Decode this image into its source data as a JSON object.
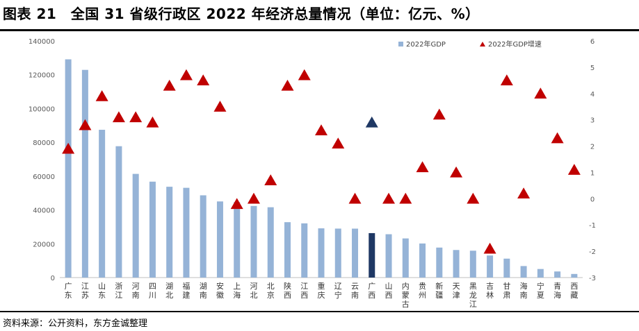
{
  "title": "图表 21　全国 31 省级行政区 2022 年经济总量情况（单位：亿元、%）",
  "source": "资料来源：公开资料，东方金诚整理",
  "colors": {
    "bar": "#95b3d7",
    "bar_highlight": "#1f3864",
    "marker": "#c00000",
    "marker_highlight": "#1f3864",
    "axis": "#bfbfbf"
  },
  "chart_data": {
    "type": "bar",
    "highlight_category": "广西",
    "categories": [
      "广东",
      "江苏",
      "山东",
      "浙江",
      "河南",
      "四川",
      "湖北",
      "福建",
      "湖南",
      "安徽",
      "上海",
      "河北",
      "北京",
      "陕西",
      "江西",
      "重庆",
      "辽宁",
      "云南",
      "广西",
      "山西",
      "内蒙古",
      "贵州",
      "新疆",
      "天津",
      "黑龙江",
      "吉林",
      "甘肃",
      "海南",
      "宁夏",
      "青海",
      "西藏"
    ],
    "series": [
      {
        "name": "2022年GDP",
        "type": "bar",
        "axis": "left",
        "values": [
          129118,
          122876,
          87435,
          77715,
          61345,
          56750,
          53735,
          53110,
          48670,
          45045,
          44653,
          42370,
          41611,
          32773,
          32075,
          29129,
          28975,
          28954,
          26301,
          25643,
          23159,
          20165,
          17741,
          16311,
          15901,
          13070,
          11201,
          6818,
          5070,
          3610,
          2133
        ]
      },
      {
        "name": "2022年GDP增速",
        "type": "scatter",
        "marker": "triangle",
        "axis": "right",
        "values": [
          1.9,
          2.8,
          3.9,
          3.1,
          3.1,
          2.9,
          4.3,
          4.7,
          4.5,
          3.5,
          -0.2,
          0.0,
          0.7,
          4.3,
          4.7,
          2.6,
          2.1,
          0.0,
          2.9,
          0.0,
          0.0,
          1.2,
          3.2,
          1.0,
          0.0,
          -1.9,
          4.5,
          0.2,
          4.0,
          2.3,
          1.1
        ]
      }
    ],
    "ylim_left": [
      0,
      140000
    ],
    "yticks_left": [
      0,
      20000,
      40000,
      60000,
      80000,
      100000,
      120000,
      140000
    ],
    "ylim_right": [
      -3,
      6
    ],
    "yticks_right": [
      -3,
      -2,
      -1,
      0,
      1,
      2,
      3,
      4,
      5,
      6
    ],
    "legend": [
      "2022年GDP",
      "2022年GDP增速"
    ],
    "legend_position": "top-right",
    "grid": false
  }
}
